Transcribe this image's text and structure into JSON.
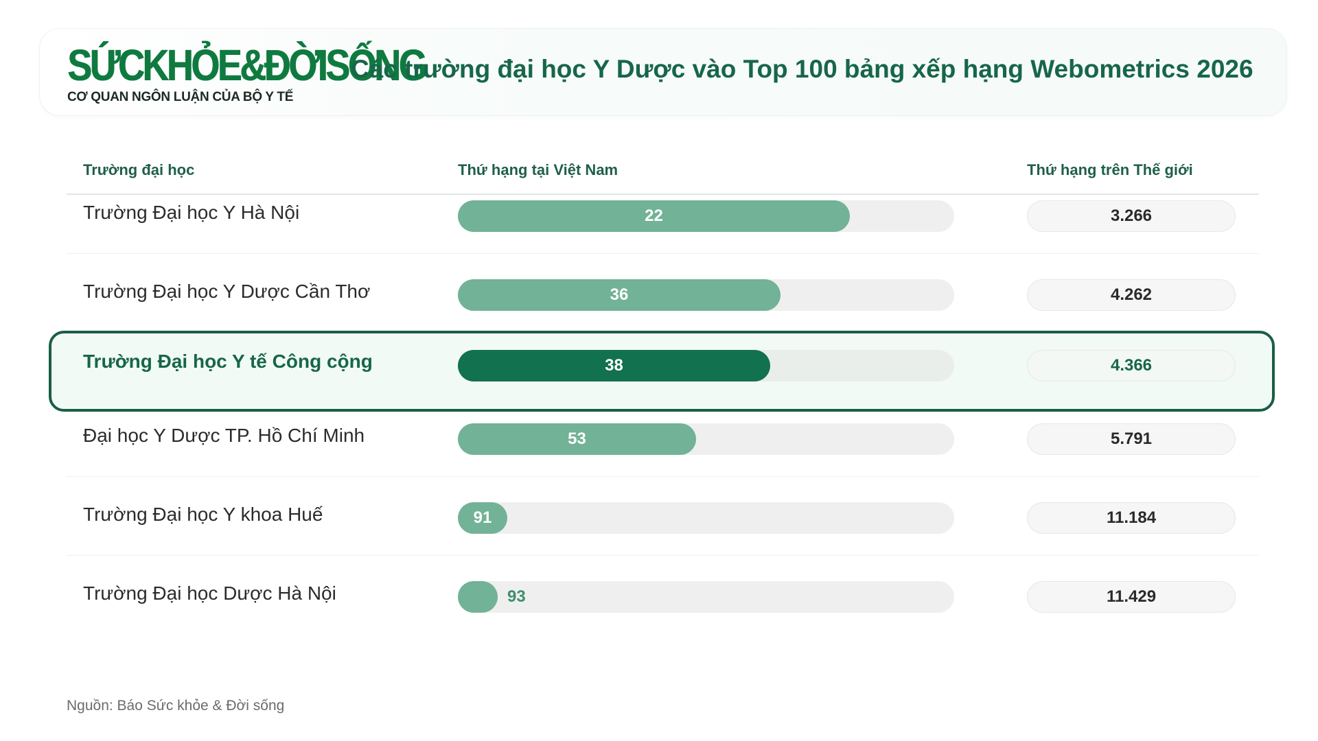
{
  "header": {
    "logo_main": "SỨCKHỎE&ĐỜISỐNG",
    "logo_sub": "CƠ QUAN NGÔN LUẬN CỦA BỘ Y TẾ",
    "title": "Các trường đại học Y Dược vào Top 100 bảng xếp hạng Webometrics 2026"
  },
  "columns": {
    "school": "Trường đại học",
    "vn_rank": "Thứ hạng tại Việt Nam",
    "world_rank": "Thứ hạng trên Thế giới"
  },
  "chart_data": {
    "type": "bar",
    "title": "Các trường đại học Y Dược vào Top 100 bảng xếp hạng Webometrics 2026",
    "categories": [
      "Trường Đại học Y Hà Nội",
      "Trường Đại học Y Dược Cần Thơ",
      "Trường Đại học Y tế Công cộng",
      "Đại học Y Dược TP. Hồ Chí Minh",
      "Trường Đại học Y khoa Huế",
      "Trường Đại học Dược Hà Nội"
    ],
    "series": [
      {
        "name": "Thứ hạng tại Việt Nam",
        "values": [
          22,
          36,
          38,
          53,
          91,
          93
        ]
      },
      {
        "name": "Thứ hạng trên Thế giới",
        "values": [
          "3.266",
          "4.262",
          "4.366",
          "5.791",
          "11.184",
          "11.429"
        ]
      }
    ],
    "highlight_index": 2,
    "bar_fill_fraction": [
      0.79,
      0.65,
      0.63,
      0.48,
      0.1,
      0.08
    ],
    "colors": {
      "bar": "#72b297",
      "bar_highlight": "#12714f",
      "track": "#efefef",
      "title": "#17664a"
    }
  },
  "source": "Nguồn: Báo Sức khỏe & Đời sống"
}
